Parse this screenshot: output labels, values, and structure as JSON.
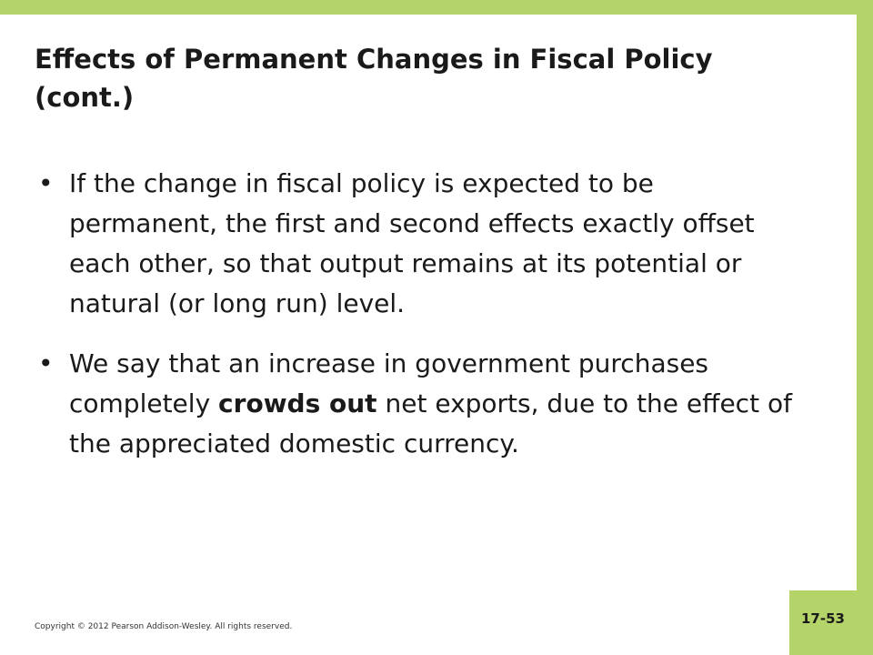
{
  "slide": {
    "title": "Effects of Permanent Changes in Fiscal Policy (cont.)",
    "bullets": [
      {
        "text": "If the change in fiscal policy is expected to be permanent, the first and second effects exactly offset each other, so that output remains at its potential or natural (or long run) level."
      },
      {
        "before": "We say that an increase in government purchases completely ",
        "bold": "crowds out",
        "after": " net exports, due to the effect of the appreciated domestic currency."
      }
    ],
    "bullet_glyph": "•",
    "copyright": "Copyright © 2012 Pearson Addison-Wesley. All rights reserved.",
    "slide_number": "17-53"
  },
  "colors": {
    "accent": "#b4d46a",
    "text": "#1a1a1a"
  }
}
